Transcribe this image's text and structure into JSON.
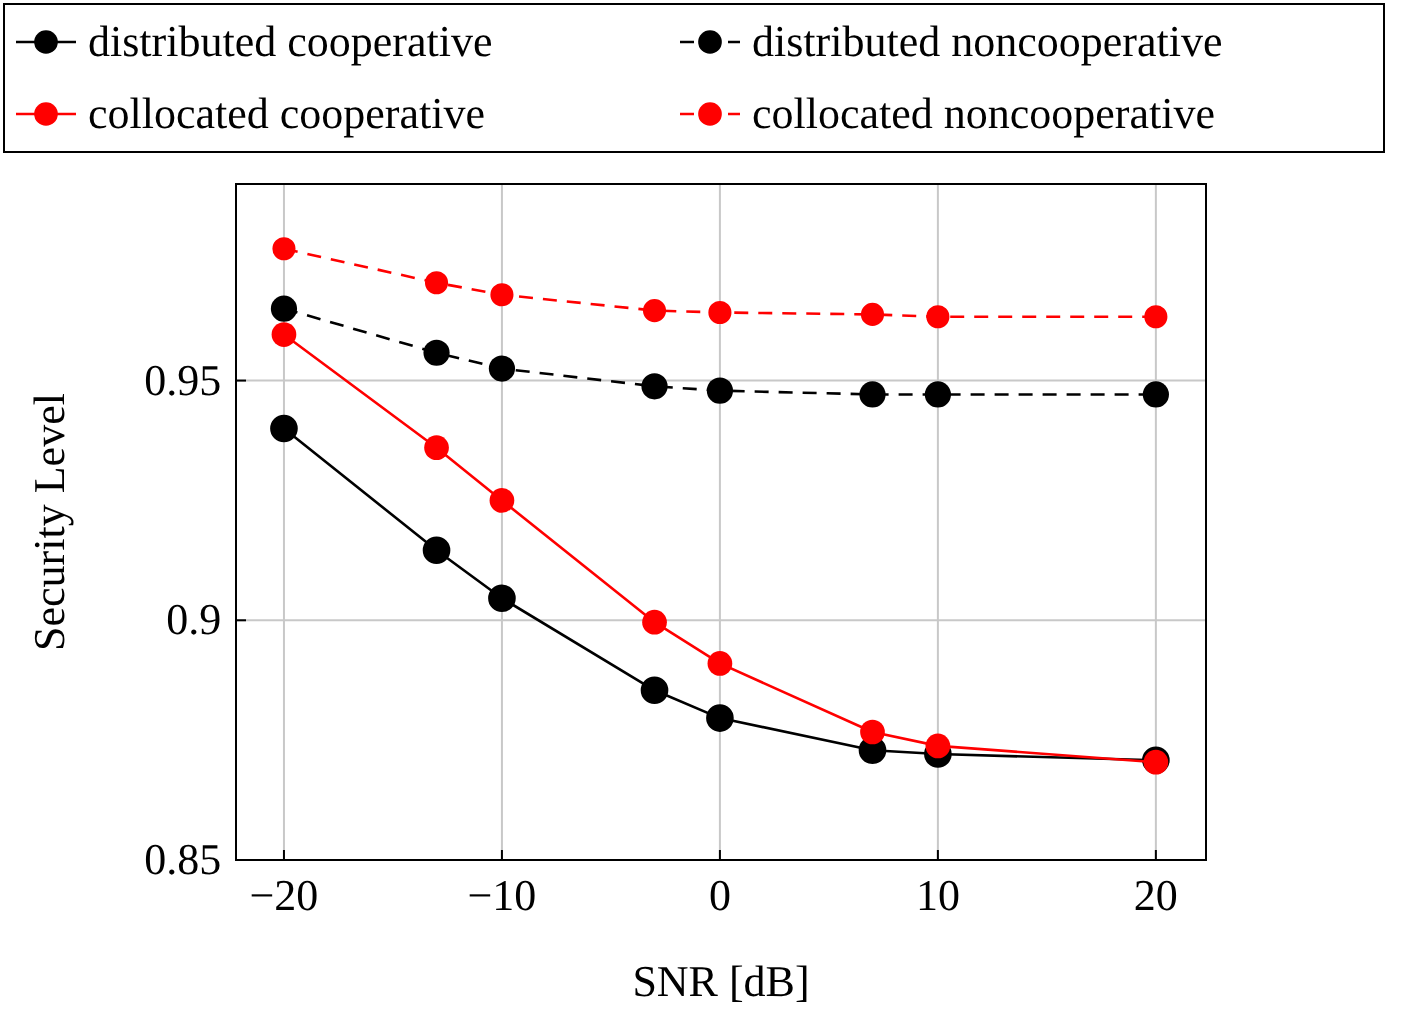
{
  "chart_data": {
    "type": "line",
    "xlabel": "SNR [dB]",
    "ylabel": "Security Level",
    "x": [
      -20,
      -13,
      -10,
      -3,
      0,
      7,
      10,
      20
    ],
    "series": [
      {
        "name": "distributed cooperative",
        "color": "#000000",
        "line_style": "solid",
        "values": [
          0.94,
          0.9146,
          0.9046,
          0.8854,
          0.8796,
          0.8729,
          0.8721,
          0.8708
        ]
      },
      {
        "name": "distributed noncooperative",
        "color": "#000000",
        "line_style": "dashed",
        "values": [
          0.965,
          0.9558,
          0.9525,
          0.9488,
          0.9479,
          0.9471,
          0.9471,
          0.9471
        ]
      },
      {
        "name": "collocated cooperative",
        "color": "#ff0000",
        "line_style": "solid",
        "values": [
          0.9596,
          0.936,
          0.925,
          0.8996,
          0.891,
          0.8767,
          0.8738,
          0.8704
        ]
      },
      {
        "name": "collocated noncooperative",
        "color": "#ff0000",
        "line_style": "dashed",
        "values": [
          0.9775,
          0.9704,
          0.9679,
          0.9646,
          0.9642,
          0.9638,
          0.9633,
          0.9633
        ]
      }
    ],
    "xlim": [
      -22.2,
      22.3
    ],
    "ylim": [
      0.85,
      0.991
    ],
    "xticks": [
      {
        "value": -20,
        "label": "−20"
      },
      {
        "value": -10,
        "label": "−10"
      },
      0,
      10,
      20
    ],
    "yticks": [
      0.85,
      0.9,
      0.95
    ],
    "grid": true,
    "legend": "top",
    "marker": "circle"
  }
}
